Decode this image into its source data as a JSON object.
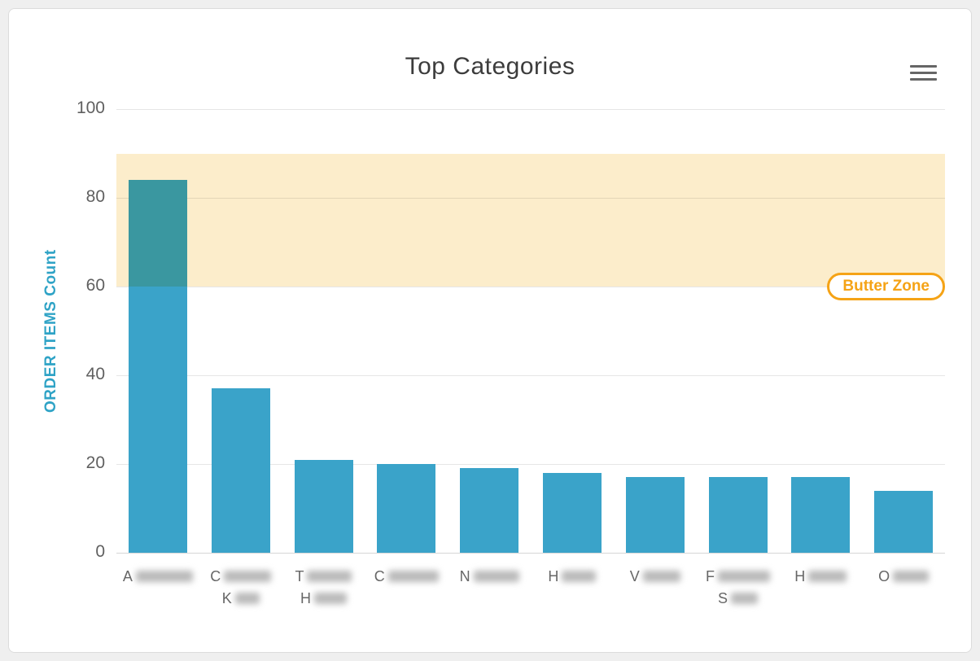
{
  "header": {
    "title": "Top Categories"
  },
  "menu": {
    "icon": "hamburger-icon"
  },
  "chart_data": {
    "type": "bar",
    "title": "Top Categories",
    "xlabel": "",
    "ylabel": "ORDER ITEMS Count",
    "ylim": [
      0,
      100
    ],
    "yticks": [
      0,
      20,
      40,
      60,
      80,
      100
    ],
    "grid": "on",
    "legend": "off",
    "values": [
      84,
      37,
      21,
      20,
      19,
      18,
      17,
      17,
      17,
      14
    ],
    "categories": [
      {
        "lines": [
          {
            "prefix": "A",
            "blur": 70
          }
        ]
      },
      {
        "lines": [
          {
            "prefix": "C",
            "blur": 58
          },
          {
            "prefix": "K",
            "blur": 30
          }
        ]
      },
      {
        "lines": [
          {
            "prefix": "T",
            "blur": 55
          },
          {
            "prefix": "H",
            "blur": 40
          }
        ]
      },
      {
        "lines": [
          {
            "prefix": "C",
            "blur": 62
          }
        ]
      },
      {
        "lines": [
          {
            "prefix": "N",
            "blur": 56
          }
        ]
      },
      {
        "lines": [
          {
            "prefix": "H",
            "blur": 42
          }
        ]
      },
      {
        "lines": [
          {
            "prefix": "V",
            "blur": 46
          }
        ]
      },
      {
        "lines": [
          {
            "prefix": "F",
            "blur": 64
          },
          {
            "prefix": "S",
            "blur": 33
          }
        ]
      },
      {
        "lines": [
          {
            "prefix": "H",
            "blur": 47
          }
        ]
      },
      {
        "lines": [
          {
            "prefix": "O",
            "blur": 44
          }
        ]
      }
    ],
    "plot_band": {
      "from": 60,
      "to": 90,
      "label": "Butter Zone"
    },
    "colors": {
      "bar": "#3AA3C9",
      "band": "#FCEDCB",
      "band_label": "#F5A316",
      "ylabel": "#2FA3C6",
      "title": "#3C3C3C",
      "tick": "#606060",
      "xtick": "#666666",
      "grid": "#E6E6E6",
      "axis": "#D6D6D6",
      "redacted": "#B9B9B9"
    }
  }
}
